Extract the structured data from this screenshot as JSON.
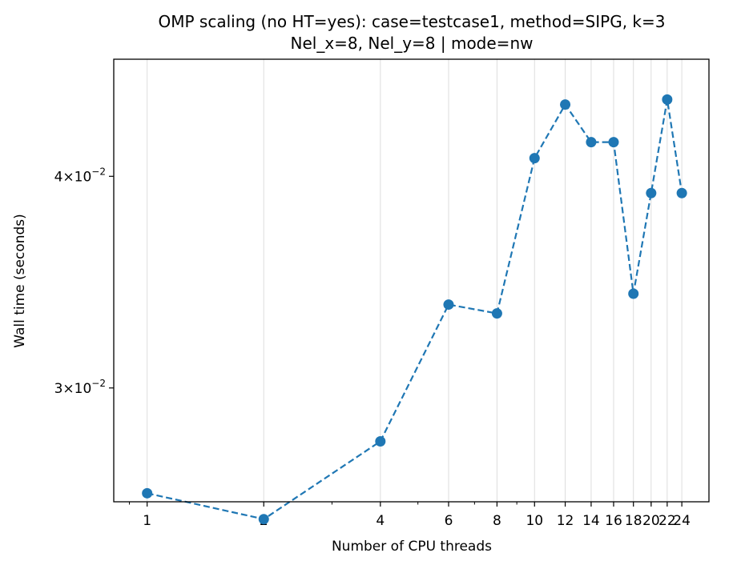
{
  "chart_data": {
    "type": "line",
    "title_line1": "OMP scaling (no HT=yes): case=testcase1, method=SIPG, k=3",
    "title_line2": "Nel_x=8, Nel_y=8  |  mode=nw",
    "xlabel": "Number of CPU threads",
    "ylabel": "Wall time (seconds)",
    "x_scale": "log",
    "y_scale": "log",
    "xlim": [
      0.82,
      28.2
    ],
    "ylim": [
      0.0257,
      0.0469
    ],
    "x_ticks": [
      1,
      2,
      4,
      6,
      8,
      10,
      12,
      14,
      16,
      18,
      20,
      22,
      24
    ],
    "x_tick_labels": [
      "1",
      "2",
      "4",
      "6",
      "8",
      "10",
      "12",
      "14",
      "16",
      "18",
      "20",
      "22",
      "24"
    ],
    "y_ticks": [
      {
        "value": 0.04,
        "mant": "4",
        "exp": "−2"
      },
      {
        "value": 0.03,
        "mant": "3",
        "exp": "−2"
      }
    ],
    "grid": "x-major",
    "color": "#1f77b4",
    "line_style": "dashed",
    "marker": "circle",
    "series": [
      {
        "x": [
          1,
          2,
          4,
          6,
          8,
          10,
          12,
          14,
          16,
          18,
          20,
          22,
          24
        ],
        "y": [
          0.026,
          0.0251,
          0.0279,
          0.0336,
          0.0332,
          0.041,
          0.0441,
          0.0419,
          0.0419,
          0.0341,
          0.0391,
          0.0444,
          0.0391
        ]
      }
    ]
  }
}
